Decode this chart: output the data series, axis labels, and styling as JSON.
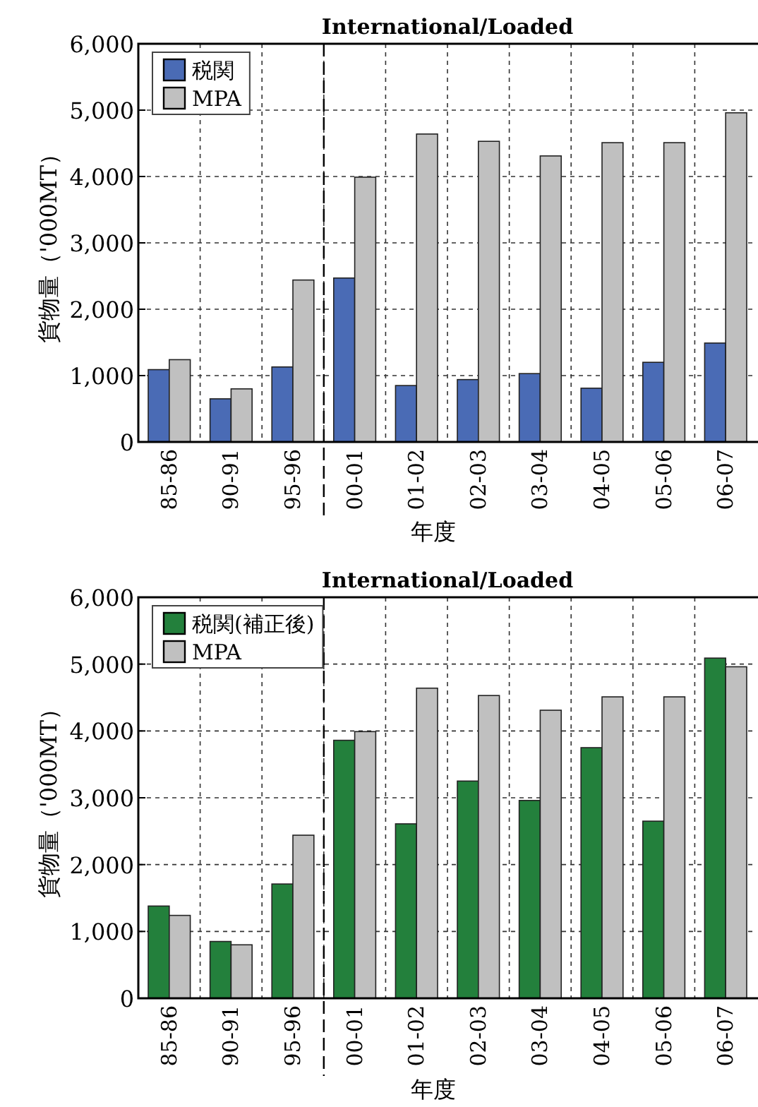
{
  "chart_data": [
    {
      "type": "bar",
      "title": "International/Loaded",
      "xlabel": "年度",
      "ylabel": "貨物量（'000MT）",
      "categories": [
        "85-86",
        "90-91",
        "95-96",
        "00-01",
        "01-02",
        "02-03",
        "03-04",
        "04-05",
        "05-06",
        "06-07"
      ],
      "series": [
        {
          "name": "税関",
          "color": "#4a6bb5",
          "values": [
            1090,
            650,
            1130,
            2470,
            850,
            940,
            1030,
            810,
            1200,
            1490
          ]
        },
        {
          "name": "MPA",
          "color": "#c0c0c0",
          "values": [
            1240,
            800,
            2440,
            3990,
            4640,
            4530,
            4310,
            4510,
            4510,
            4960
          ]
        }
      ],
      "ylim": [
        0,
        6000
      ],
      "yticks": [
        0,
        {
          "value": 1000,
          "label": "1,000"
        },
        {
          "value": 2000,
          "label": "2,000"
        },
        {
          "value": 3000,
          "label": "3,000"
        },
        {
          "value": 4000,
          "label": "4,000"
        },
        {
          "value": 5000,
          "label": "5,000"
        },
        {
          "value": 6000,
          "label": "6,000"
        }
      ],
      "grid": true,
      "legend": "top left"
    },
    {
      "type": "bar",
      "title": "International/Loaded",
      "xlabel": "年度",
      "ylabel": "貨物量（'000MT）",
      "categories": [
        "85-86",
        "90-91",
        "95-96",
        "00-01",
        "01-02",
        "02-03",
        "03-04",
        "04-05",
        "05-06",
        "06-07"
      ],
      "series": [
        {
          "name": "税関(補正後)",
          "color": "#23803c",
          "values": [
            1380,
            850,
            1710,
            3860,
            2610,
            3250,
            2960,
            3750,
            2650,
            5090
          ]
        },
        {
          "name": "MPA",
          "color": "#c0c0c0",
          "values": [
            1240,
            800,
            2440,
            3990,
            4640,
            4530,
            4310,
            4510,
            4510,
            4960
          ]
        }
      ],
      "ylim": [
        0,
        6000
      ],
      "yticks": [
        0,
        {
          "value": 1000,
          "label": "1,000"
        },
        {
          "value": 2000,
          "label": "2,000"
        },
        {
          "value": 3000,
          "label": "3,000"
        },
        {
          "value": 4000,
          "label": "4,000"
        },
        {
          "value": 5000,
          "label": "5,000"
        },
        {
          "value": 6000,
          "label": "6,000"
        }
      ],
      "grid": true,
      "legend": "top left"
    }
  ]
}
